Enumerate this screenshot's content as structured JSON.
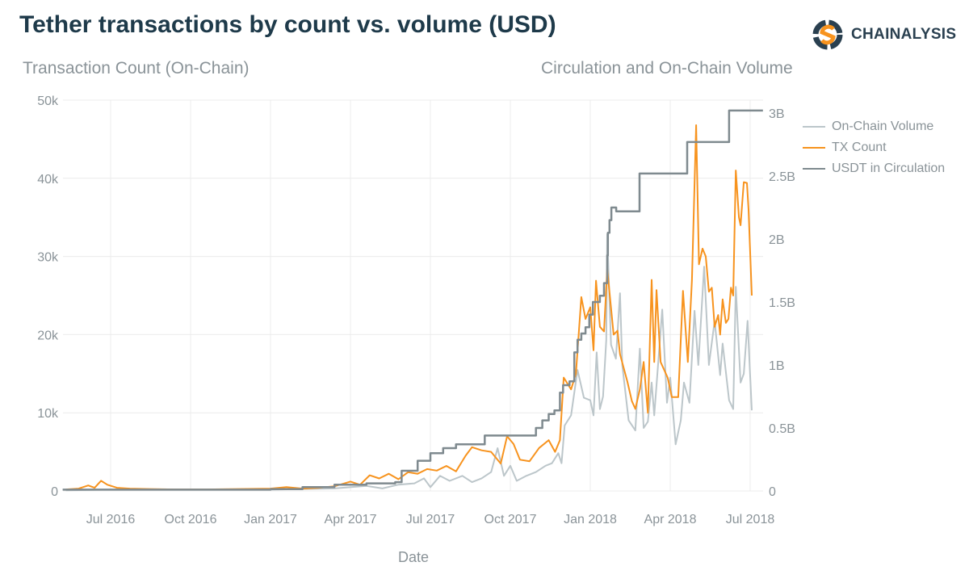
{
  "header": {
    "title": "Tether transactions by count vs. volume (USD)"
  },
  "logo": {
    "text": "CHAINALYSIS",
    "colors": {
      "orange": "#f7931e",
      "navy": "#2a4050"
    }
  },
  "chart_data": {
    "type": "line",
    "title": "Tether transactions by count vs. volume (USD)",
    "xlabel": "Date",
    "ylabel_left": "Transaction Count (On-Chain)",
    "ylabel_right": "Circulation and On-Chain Volume",
    "x_units": "decimal year",
    "xlim": [
      2016.35,
      2018.54
    ],
    "ylim_left": [
      0,
      50000
    ],
    "ylim_right": [
      0,
      3000000000
    ],
    "x_ticks": [
      {
        "value": 2016.5,
        "label": "Jul 2016"
      },
      {
        "value": 2016.75,
        "label": "Oct 2016"
      },
      {
        "value": 2017.0,
        "label": "Jan 2017"
      },
      {
        "value": 2017.25,
        "label": "Apr 2017"
      },
      {
        "value": 2017.5,
        "label": "Jul 2017"
      },
      {
        "value": 2017.75,
        "label": "Oct 2017"
      },
      {
        "value": 2018.0,
        "label": "Jan 2018"
      },
      {
        "value": 2018.25,
        "label": "Apr 2018"
      },
      {
        "value": 2018.5,
        "label": "Jul 2018"
      }
    ],
    "y_ticks_left": [
      {
        "value": 0,
        "label": "0"
      },
      {
        "value": 10000,
        "label": "10k"
      },
      {
        "value": 20000,
        "label": "20k"
      },
      {
        "value": 30000,
        "label": "30k"
      },
      {
        "value": 40000,
        "label": "40k"
      },
      {
        "value": 50000,
        "label": "50k"
      }
    ],
    "y_ticks_right": [
      {
        "value": 0,
        "label": "0"
      },
      {
        "value": 500000000,
        "label": "0.5B"
      },
      {
        "value": 1000000000,
        "label": "1B"
      },
      {
        "value": 1500000000,
        "label": "1.5B"
      },
      {
        "value": 2000000000,
        "label": "2B"
      },
      {
        "value": 2500000000,
        "label": "2.5B"
      },
      {
        "value": 3000000000,
        "label": "3B"
      }
    ],
    "grid": true,
    "legend_position": "top-right",
    "series": [
      {
        "name": "On-Chain Volume",
        "axis": "right",
        "color": "#bcc6ca",
        "unit": "USD billions",
        "style": "line",
        "points": [
          [
            2016.36,
            0.005
          ],
          [
            2016.5,
            0.01
          ],
          [
            2016.75,
            0.01
          ],
          [
            2017.0,
            0.01
          ],
          [
            2017.2,
            0.02
          ],
          [
            2017.3,
            0.04
          ],
          [
            2017.35,
            0.02
          ],
          [
            2017.4,
            0.05
          ],
          [
            2017.45,
            0.06
          ],
          [
            2017.48,
            0.1
          ],
          [
            2017.5,
            0.03
          ],
          [
            2017.53,
            0.12
          ],
          [
            2017.56,
            0.08
          ],
          [
            2017.6,
            0.12
          ],
          [
            2017.63,
            0.07
          ],
          [
            2017.66,
            0.1
          ],
          [
            2017.69,
            0.15
          ],
          [
            2017.71,
            0.34
          ],
          [
            2017.73,
            0.12
          ],
          [
            2017.75,
            0.2
          ],
          [
            2017.77,
            0.08
          ],
          [
            2017.8,
            0.12
          ],
          [
            2017.83,
            0.15
          ],
          [
            2017.86,
            0.2
          ],
          [
            2017.88,
            0.22
          ],
          [
            2017.9,
            0.3
          ],
          [
            2017.91,
            0.22
          ],
          [
            2017.92,
            0.52
          ],
          [
            2017.94,
            0.6
          ],
          [
            2017.96,
            0.96
          ],
          [
            2017.98,
            0.74
          ],
          [
            2018.0,
            0.72
          ],
          [
            2018.01,
            0.6
          ],
          [
            2018.02,
            1.1
          ],
          [
            2018.03,
            0.65
          ],
          [
            2018.04,
            0.75
          ],
          [
            2018.05,
            1.2
          ],
          [
            2018.053,
            2.04
          ],
          [
            2018.065,
            1.16
          ],
          [
            2018.08,
            1.05
          ],
          [
            2018.093,
            1.57
          ],
          [
            2018.1,
            1.0
          ],
          [
            2018.12,
            0.56
          ],
          [
            2018.141,
            0.48
          ],
          [
            2018.155,
            1.13
          ],
          [
            2018.167,
            0.5
          ],
          [
            2018.18,
            0.55
          ],
          [
            2018.192,
            0.86
          ],
          [
            2018.2,
            0.6
          ],
          [
            2018.225,
            1.44
          ],
          [
            2018.24,
            0.7
          ],
          [
            2018.25,
            0.9
          ],
          [
            2018.267,
            0.37
          ],
          [
            2018.283,
            0.56
          ],
          [
            2018.293,
            0.86
          ],
          [
            2018.31,
            0.7
          ],
          [
            2018.326,
            1.43
          ],
          [
            2018.338,
            1.0
          ],
          [
            2018.356,
            1.78
          ],
          [
            2018.371,
            1.0
          ],
          [
            2018.389,
            1.35
          ],
          [
            2018.406,
            0.92
          ],
          [
            2018.414,
            1.17
          ],
          [
            2018.434,
            0.72
          ],
          [
            2018.447,
            0.65
          ],
          [
            2018.455,
            1.62
          ],
          [
            2018.47,
            0.86
          ],
          [
            2018.48,
            0.93
          ],
          [
            2018.492,
            1.35
          ],
          [
            2018.505,
            0.64
          ]
        ]
      },
      {
        "name": "TX Count",
        "axis": "left",
        "color": "#f7931e",
        "unit": "transactions (thousands)",
        "style": "line",
        "points": [
          [
            2016.36,
            0.2
          ],
          [
            2016.4,
            0.3
          ],
          [
            2016.43,
            0.7
          ],
          [
            2016.45,
            0.4
          ],
          [
            2016.47,
            1.3
          ],
          [
            2016.49,
            0.8
          ],
          [
            2016.52,
            0.4
          ],
          [
            2016.56,
            0.3
          ],
          [
            2016.62,
            0.25
          ],
          [
            2016.7,
            0.2
          ],
          [
            2016.8,
            0.2
          ],
          [
            2016.9,
            0.25
          ],
          [
            2017.0,
            0.3
          ],
          [
            2017.05,
            0.5
          ],
          [
            2017.1,
            0.3
          ],
          [
            2017.15,
            0.4
          ],
          [
            2017.2,
            0.6
          ],
          [
            2017.25,
            1.2
          ],
          [
            2017.28,
            0.8
          ],
          [
            2017.31,
            2.0
          ],
          [
            2017.34,
            1.6
          ],
          [
            2017.37,
            2.2
          ],
          [
            2017.4,
            1.5
          ],
          [
            2017.43,
            2.4
          ],
          [
            2017.46,
            2.2
          ],
          [
            2017.49,
            2.8
          ],
          [
            2017.52,
            2.6
          ],
          [
            2017.55,
            3.2
          ],
          [
            2017.58,
            2.5
          ],
          [
            2017.61,
            4.5
          ],
          [
            2017.63,
            5.6
          ],
          [
            2017.66,
            5.2
          ],
          [
            2017.69,
            5.0
          ],
          [
            2017.72,
            3.5
          ],
          [
            2017.74,
            7.0
          ],
          [
            2017.76,
            6.0
          ],
          [
            2017.78,
            4.0
          ],
          [
            2017.81,
            3.8
          ],
          [
            2017.84,
            5.5
          ],
          [
            2017.87,
            6.5
          ],
          [
            2017.89,
            5.0
          ],
          [
            2017.905,
            6.5
          ],
          [
            2017.917,
            14.5
          ],
          [
            2017.94,
            13
          ],
          [
            2017.955,
            15
          ],
          [
            2017.972,
            24.8
          ],
          [
            2017.985,
            22
          ],
          [
            2018.0,
            23.5
          ],
          [
            2018.01,
            18
          ],
          [
            2018.018,
            26.9
          ],
          [
            2018.03,
            21
          ],
          [
            2018.043,
            20.4
          ],
          [
            2018.053,
            28.4
          ],
          [
            2018.073,
            20
          ],
          [
            2018.085,
            20.5
          ],
          [
            2018.093,
            17.5
          ],
          [
            2018.116,
            14
          ],
          [
            2018.13,
            11.5
          ],
          [
            2018.141,
            10.5
          ],
          [
            2018.155,
            13
          ],
          [
            2018.167,
            16.5
          ],
          [
            2018.18,
            10
          ],
          [
            2018.192,
            27
          ],
          [
            2018.2,
            16.5
          ],
          [
            2018.207,
            25.7
          ],
          [
            2018.22,
            16.5
          ],
          [
            2018.242,
            14.5
          ],
          [
            2018.255,
            12
          ],
          [
            2018.275,
            12
          ],
          [
            2018.29,
            25.6
          ],
          [
            2018.305,
            16.5
          ],
          [
            2018.318,
            27
          ],
          [
            2018.331,
            46.8
          ],
          [
            2018.34,
            29
          ],
          [
            2018.351,
            31
          ],
          [
            2018.361,
            30
          ],
          [
            2018.371,
            25.5
          ],
          [
            2018.38,
            26
          ],
          [
            2018.389,
            21
          ],
          [
            2018.4,
            22.5
          ],
          [
            2018.406,
            20
          ],
          [
            2018.414,
            24.5
          ],
          [
            2018.424,
            21.5
          ],
          [
            2018.432,
            22
          ],
          [
            2018.44,
            26
          ],
          [
            2018.447,
            25
          ],
          [
            2018.455,
            41
          ],
          [
            2018.465,
            35
          ],
          [
            2018.47,
            34
          ],
          [
            2018.48,
            39.5
          ],
          [
            2018.49,
            39.4
          ],
          [
            2018.495,
            36
          ],
          [
            2018.505,
            25
          ]
        ]
      },
      {
        "name": "USDT in Circulation",
        "axis": "right",
        "color": "#7f8a8f",
        "unit": "USD billions",
        "style": "step",
        "points": [
          [
            2016.35,
            0.01
          ],
          [
            2016.85,
            0.01
          ],
          [
            2017.0,
            0.015
          ],
          [
            2017.1,
            0.03
          ],
          [
            2017.2,
            0.05
          ],
          [
            2017.3,
            0.06
          ],
          [
            2017.39,
            0.07
          ],
          [
            2017.41,
            0.16
          ],
          [
            2017.46,
            0.24
          ],
          [
            2017.5,
            0.3
          ],
          [
            2017.54,
            0.34
          ],
          [
            2017.58,
            0.37
          ],
          [
            2017.67,
            0.44
          ],
          [
            2017.76,
            0.44
          ],
          [
            2017.83,
            0.5
          ],
          [
            2017.85,
            0.56
          ],
          [
            2017.87,
            0.61
          ],
          [
            2017.888,
            0.64
          ],
          [
            2017.905,
            0.78
          ],
          [
            2017.915,
            0.84
          ],
          [
            2017.935,
            0.87
          ],
          [
            2017.95,
            1.1
          ],
          [
            2017.96,
            1.2
          ],
          [
            2017.972,
            1.25
          ],
          [
            2017.985,
            1.3
          ],
          [
            2017.997,
            1.4
          ],
          [
            2018.008,
            1.5
          ],
          [
            2018.03,
            1.55
          ],
          [
            2018.043,
            1.65
          ],
          [
            2018.053,
            1.87
          ],
          [
            2018.055,
            2.05
          ],
          [
            2018.06,
            2.15
          ],
          [
            2018.066,
            2.25
          ],
          [
            2018.081,
            2.22
          ],
          [
            2018.154,
            2.52
          ],
          [
            2018.303,
            2.77
          ],
          [
            2018.434,
            3.02
          ],
          [
            2018.54,
            3.02
          ]
        ]
      }
    ]
  }
}
